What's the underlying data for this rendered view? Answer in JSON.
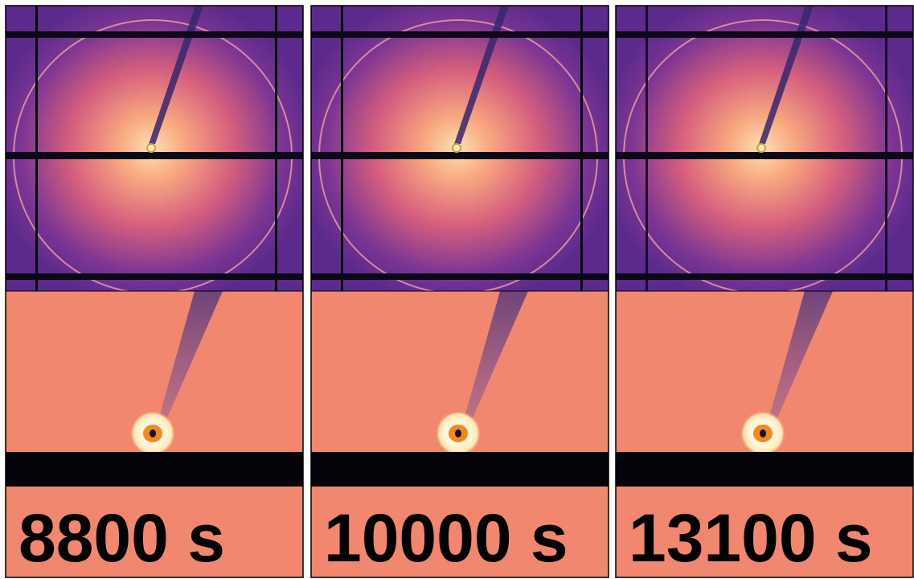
{
  "panels": [
    {
      "label": "8800 s"
    },
    {
      "label": "10000 s"
    },
    {
      "label": "13100 s"
    }
  ]
}
